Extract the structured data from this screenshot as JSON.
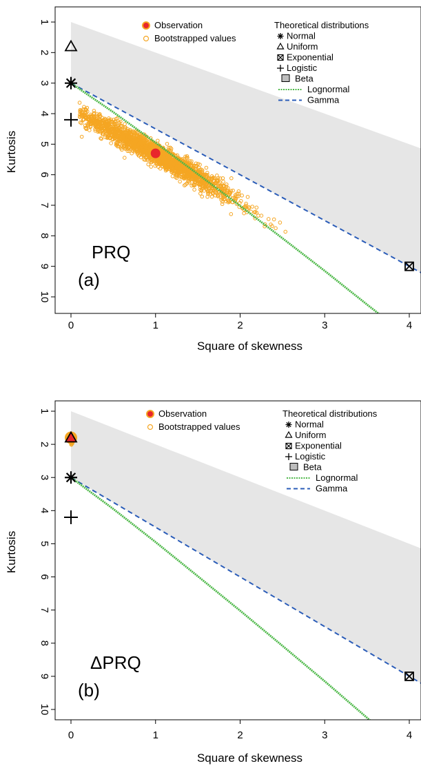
{
  "chart_data": [
    {
      "type": "scatter",
      "panel_label": "(a)",
      "annotation": "PRQ",
      "xlabel": "Square of skewness",
      "ylabel": "Kurtosis",
      "xlim": [
        0,
        4
      ],
      "ylim": [
        10,
        1
      ],
      "x_ticks": [
        "0",
        "1",
        "2",
        "3",
        "4"
      ],
      "y_ticks": [
        "1",
        "2",
        "3",
        "4",
        "5",
        "6",
        "7",
        "8",
        "9",
        "10"
      ],
      "legend_left": [
        "Observation",
        "Bootstrapped values"
      ],
      "legend_right_title": "Theoretical distributions",
      "legend_right": [
        "Normal",
        "Uniform",
        "Exponential",
        "Logistic",
        "Beta",
        "Lognormal",
        "Gamma"
      ],
      "observation": {
        "x": 1.0,
        "y": 5.3
      },
      "bootstrap_cloud": {
        "center": [
          1.0,
          5.3
        ],
        "x_range": [
          0.1,
          2.9
        ],
        "y_range": [
          2.8,
          9.0
        ],
        "n": 2200
      },
      "theoretical_points": {
        "normal": {
          "x": 0,
          "y": 3.0
        },
        "uniform": {
          "x": 0,
          "y": 1.8
        },
        "logistic": {
          "x": 0,
          "y": 4.2
        },
        "exponential": {
          "x": 4,
          "y": 9.0
        }
      },
      "beta_region": {
        "upper_bound": [
          [
            0,
            1.0
          ],
          [
            4,
            5.0
          ]
        ],
        "lower_bound": [
          [
            0,
            3.0
          ],
          [
            4,
            9.0
          ]
        ]
      },
      "gamma_line": [
        [
          0,
          3.0
        ],
        [
          4,
          9.0
        ]
      ],
      "lognormal_line": [
        [
          0,
          3.0
        ],
        [
          0.5,
          3.95
        ],
        [
          1.0,
          4.95
        ],
        [
          1.5,
          5.98
        ],
        [
          2.0,
          7.02
        ],
        [
          2.5,
          8.08
        ],
        [
          3.0,
          9.15
        ],
        [
          3.5,
          10.25
        ],
        [
          3.8,
          10.9
        ]
      ],
      "colors": {
        "observation": "#e8262c",
        "bootstrap": "#f5a623",
        "gamma": "#2a5cb8",
        "lognormal": "#4db848",
        "beta_region": "#e6e6e6"
      }
    },
    {
      "type": "scatter",
      "panel_label": "(b)",
      "annotation": "ΔPRQ",
      "xlabel": "Square of skewness",
      "ylabel": "Kurtosis",
      "xlim": [
        0,
        4
      ],
      "ylim": [
        10,
        1
      ],
      "x_ticks": [
        "0",
        "1",
        "2",
        "3",
        "4"
      ],
      "y_ticks": [
        "1",
        "2",
        "3",
        "4",
        "5",
        "6",
        "7",
        "8",
        "9",
        "10"
      ],
      "legend_left": [
        "Observation",
        "Bootstrapped values"
      ],
      "legend_right_title": "Theoretical distributions",
      "legend_right": [
        "Normal",
        "Uniform",
        "Exponential",
        "Logistic",
        "Beta",
        "Lognormal",
        "Gamma"
      ],
      "observation": {
        "x": 0.0,
        "y": 1.8
      },
      "bootstrap_cloud": {
        "center": [
          0.0,
          1.85
        ],
        "x_range": [
          0.0,
          0.02
        ],
        "y_range": [
          1.7,
          2.05
        ],
        "n": 120
      },
      "theoretical_points": {
        "normal": {
          "x": 0,
          "y": 3.0
        },
        "uniform": {
          "x": 0,
          "y": 1.8
        },
        "logistic": {
          "x": 0,
          "y": 4.2
        },
        "exponential": {
          "x": 4,
          "y": 9.0
        }
      },
      "beta_region": {
        "upper_bound": [
          [
            0,
            1.0
          ],
          [
            4,
            5.0
          ]
        ],
        "lower_bound": [
          [
            0,
            3.0
          ],
          [
            4,
            9.0
          ]
        ]
      },
      "gamma_line": [
        [
          0,
          3.0
        ],
        [
          4,
          9.0
        ]
      ],
      "lognormal_line": [
        [
          0,
          3.0
        ],
        [
          0.5,
          3.95
        ],
        [
          1.0,
          4.95
        ],
        [
          1.5,
          5.98
        ],
        [
          2.0,
          7.02
        ],
        [
          2.5,
          8.08
        ],
        [
          3.0,
          9.15
        ],
        [
          3.5,
          10.25
        ],
        [
          3.8,
          10.9
        ]
      ],
      "colors": {
        "observation": "#e8262c",
        "bootstrap": "#f5a623",
        "gamma": "#2a5cb8",
        "lognormal": "#4db848",
        "beta_region": "#e6e6e6"
      }
    }
  ]
}
